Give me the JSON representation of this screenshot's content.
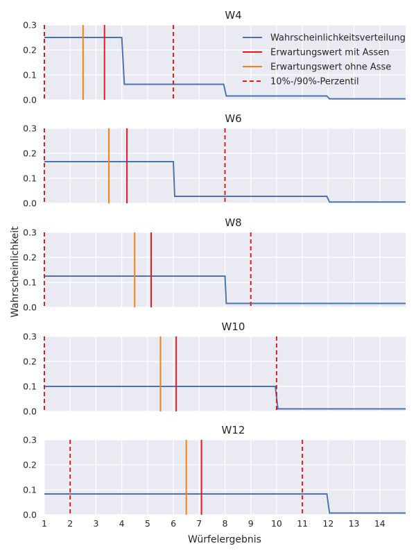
{
  "figure": {
    "xlabel": "Würfelergebnis",
    "ylabel": "Wahrscheinlichkeit"
  },
  "legend": {
    "placement": "top-right",
    "entries": [
      {
        "label": "Wahrscheinlichkeitsverteilung",
        "color": "#4c72b0",
        "style": "solid"
      },
      {
        "label": "Erwartungswert mit Assen",
        "color": "#e41a1c",
        "style": "solid"
      },
      {
        "label": "Erwartungswert ohne Asse",
        "color": "#ff7f0e",
        "style": "solid"
      },
      {
        "label": "10%-/90%-Perzentil",
        "color": "#e41a1c",
        "style": "dashed"
      }
    ]
  },
  "colors": {
    "background": "#eaeaf2",
    "grid": "#ffffff",
    "distribution": "#4c72b0",
    "mean_with_aces": "#e41a1c",
    "mean_without_aces": "#ff7f0e",
    "percentile": "#e41a1c"
  },
  "chart_data": [
    {
      "type": "line",
      "title": "W4",
      "xlim": [
        1,
        15
      ],
      "ylim": [
        0,
        0.3
      ],
      "yticks": [
        "0.0",
        "0.1",
        "0.2",
        "0.3"
      ],
      "xticks": [
        "1",
        "2",
        "3",
        "4",
        "5",
        "6",
        "7",
        "8",
        "9",
        "10",
        "11",
        "12",
        "13",
        "14"
      ],
      "grid": true,
      "series": [
        {
          "values": [
            {
              "x": 1,
              "y": 0.25
            },
            {
              "x": 4,
              "y": 0.25
            },
            {
              "x": 4.1,
              "y": 0.0625
            },
            {
              "x": 7.95,
              "y": 0.0625
            },
            {
              "x": 8.05,
              "y": 0.0156
            },
            {
              "x": 11.95,
              "y": 0.0156
            },
            {
              "x": 12.05,
              "y": 0.004
            },
            {
              "x": 15,
              "y": 0.004
            }
          ]
        }
      ],
      "mean_with_aces": 3.33,
      "mean_without_aces": 2.5,
      "percentiles": [
        1,
        6
      ]
    },
    {
      "type": "line",
      "title": "W6",
      "xlim": [
        1,
        15
      ],
      "ylim": [
        0,
        0.3
      ],
      "yticks": [
        "0.0",
        "0.1",
        "0.2",
        "0.3"
      ],
      "grid": true,
      "series": [
        {
          "values": [
            {
              "x": 1,
              "y": 0.1667
            },
            {
              "x": 6,
              "y": 0.1667
            },
            {
              "x": 6.05,
              "y": 0.0278
            },
            {
              "x": 11.95,
              "y": 0.0278
            },
            {
              "x": 12.05,
              "y": 0.005
            },
            {
              "x": 15,
              "y": 0.005
            }
          ]
        }
      ],
      "mean_with_aces": 4.2,
      "mean_without_aces": 3.5,
      "percentiles": [
        1,
        8
      ]
    },
    {
      "type": "line",
      "title": "W8",
      "xlim": [
        1,
        15
      ],
      "ylim": [
        0,
        0.3
      ],
      "yticks": [
        "0.0",
        "0.1",
        "0.2",
        "0.3"
      ],
      "grid": true,
      "series": [
        {
          "values": [
            {
              "x": 1,
              "y": 0.125
            },
            {
              "x": 8,
              "y": 0.125
            },
            {
              "x": 8.05,
              "y": 0.0156
            },
            {
              "x": 15,
              "y": 0.0156
            }
          ]
        }
      ],
      "mean_with_aces": 5.14,
      "mean_without_aces": 4.5,
      "percentiles": [
        1,
        9
      ]
    },
    {
      "type": "line",
      "title": "W10",
      "xlim": [
        1,
        15
      ],
      "ylim": [
        0,
        0.3
      ],
      "yticks": [
        "0.0",
        "0.1",
        "0.2",
        "0.3"
      ],
      "grid": true,
      "series": [
        {
          "values": [
            {
              "x": 1,
              "y": 0.1
            },
            {
              "x": 9.95,
              "y": 0.1
            },
            {
              "x": 10.05,
              "y": 0.01
            },
            {
              "x": 15,
              "y": 0.01
            }
          ]
        }
      ],
      "mean_with_aces": 6.11,
      "mean_without_aces": 5.5,
      "percentiles": [
        1,
        10
      ]
    },
    {
      "type": "line",
      "title": "W12",
      "xlim": [
        1,
        15
      ],
      "ylim": [
        0,
        0.3
      ],
      "yticks": [
        "0.0",
        "0.1",
        "0.2",
        "0.3"
      ],
      "xticks": [
        "1",
        "2",
        "3",
        "4",
        "5",
        "6",
        "7",
        "8",
        "9",
        "10",
        "11",
        "12",
        "13",
        "14"
      ],
      "grid": true,
      "series": [
        {
          "values": [
            {
              "x": 1,
              "y": 0.0833
            },
            {
              "x": 11.95,
              "y": 0.0833
            },
            {
              "x": 12.05,
              "y": 0.007
            },
            {
              "x": 15,
              "y": 0.007
            }
          ]
        }
      ],
      "mean_with_aces": 7.09,
      "mean_without_aces": 6.5,
      "percentiles": [
        2,
        11
      ]
    }
  ]
}
